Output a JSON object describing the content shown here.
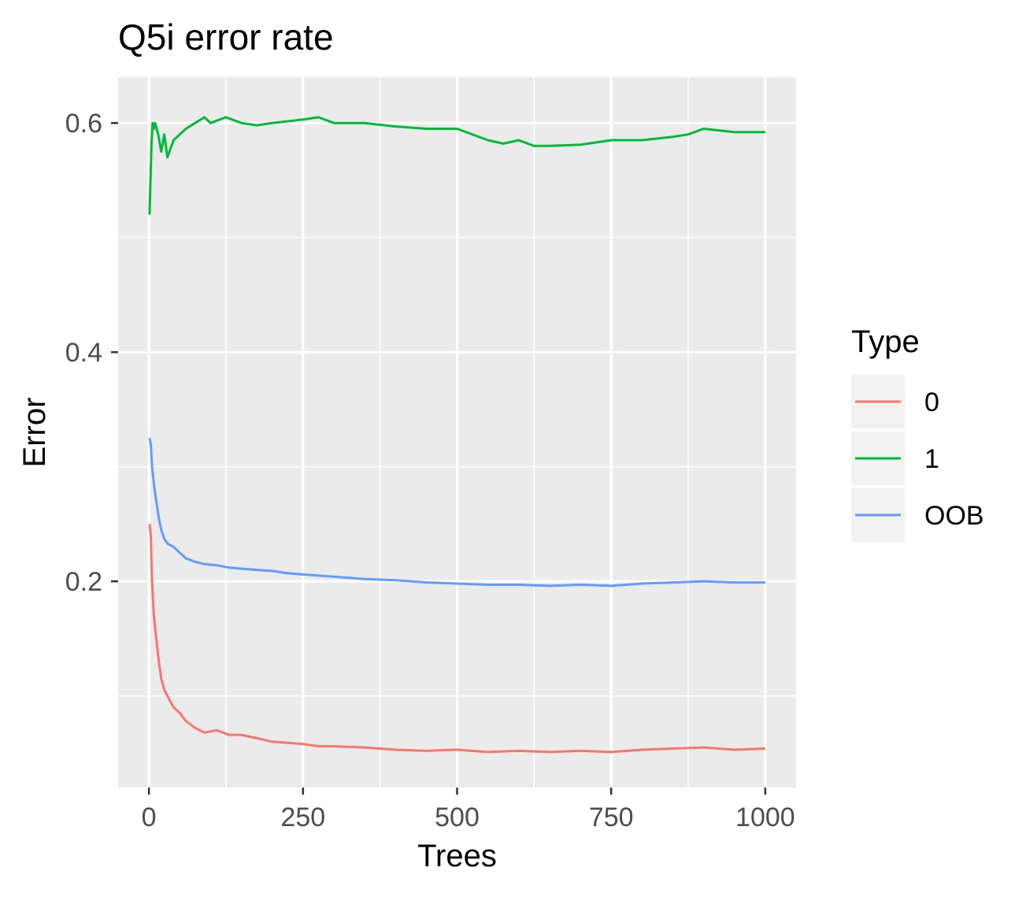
{
  "chart_data": {
    "type": "line",
    "title": "Q5i error rate",
    "xlabel": "Trees",
    "ylabel": "Error",
    "xlim": [
      -50,
      1050
    ],
    "ylim": [
      0.02,
      0.64
    ],
    "x_ticks": [
      0,
      250,
      500,
      750,
      1000
    ],
    "x_tick_labels": [
      "0",
      "250",
      "500",
      "750",
      "1000"
    ],
    "y_ticks": [
      0.2,
      0.4,
      0.6
    ],
    "y_tick_labels": [
      "0.2",
      "0.4",
      "0.6"
    ],
    "y_minor_ticks": [
      0.1,
      0.3,
      0.5
    ],
    "x_minor_ticks": [
      125,
      375,
      625,
      875
    ],
    "grid": true,
    "background": "#EBEBEB",
    "legend": {
      "title": "Type",
      "placement": "right"
    },
    "series": [
      {
        "name": "0",
        "color": "#F8766D",
        "x": [
          1,
          3,
          5,
          8,
          12,
          16,
          20,
          25,
          30,
          40,
          50,
          60,
          75,
          90,
          110,
          130,
          150,
          175,
          200,
          225,
          250,
          275,
          300,
          350,
          400,
          450,
          500,
          550,
          600,
          650,
          700,
          750,
          800,
          850,
          900,
          950,
          1000
        ],
        "values": [
          0.25,
          0.24,
          0.2,
          0.17,
          0.15,
          0.13,
          0.115,
          0.105,
          0.1,
          0.09,
          0.085,
          0.078,
          0.072,
          0.068,
          0.07,
          0.066,
          0.066,
          0.063,
          0.06,
          0.059,
          0.058,
          0.056,
          0.056,
          0.055,
          0.053,
          0.052,
          0.053,
          0.051,
          0.052,
          0.051,
          0.052,
          0.051,
          0.053,
          0.054,
          0.055,
          0.053,
          0.054
        ]
      },
      {
        "name": "1",
        "color": "#00BA38",
        "x": [
          1,
          2,
          4,
          6,
          8,
          10,
          15,
          20,
          25,
          30,
          40,
          50,
          60,
          75,
          90,
          100,
          125,
          150,
          175,
          200,
          250,
          275,
          300,
          350,
          400,
          450,
          500,
          550,
          575,
          600,
          625,
          650,
          700,
          750,
          800,
          850,
          875,
          900,
          950,
          1000
        ],
        "values": [
          0.52,
          0.54,
          0.58,
          0.6,
          0.595,
          0.6,
          0.59,
          0.575,
          0.59,
          0.57,
          0.585,
          0.59,
          0.595,
          0.6,
          0.605,
          0.6,
          0.605,
          0.6,
          0.598,
          0.6,
          0.603,
          0.605,
          0.6,
          0.6,
          0.597,
          0.595,
          0.595,
          0.585,
          0.582,
          0.585,
          0.58,
          0.58,
          0.581,
          0.585,
          0.585,
          0.588,
          0.59,
          0.595,
          0.592,
          0.592
        ]
      },
      {
        "name": "OOB",
        "color": "#619CFF",
        "x": [
          1,
          3,
          5,
          8,
          12,
          16,
          20,
          25,
          30,
          40,
          50,
          60,
          75,
          90,
          110,
          130,
          150,
          175,
          200,
          225,
          250,
          275,
          300,
          350,
          400,
          450,
          500,
          550,
          600,
          650,
          700,
          750,
          800,
          850,
          900,
          950,
          1000
        ],
        "values": [
          0.325,
          0.32,
          0.3,
          0.285,
          0.27,
          0.255,
          0.245,
          0.237,
          0.233,
          0.23,
          0.225,
          0.22,
          0.217,
          0.215,
          0.214,
          0.212,
          0.211,
          0.21,
          0.209,
          0.207,
          0.206,
          0.205,
          0.204,
          0.202,
          0.201,
          0.199,
          0.198,
          0.197,
          0.197,
          0.196,
          0.197,
          0.196,
          0.198,
          0.199,
          0.2,
          0.199,
          0.199
        ]
      }
    ]
  }
}
